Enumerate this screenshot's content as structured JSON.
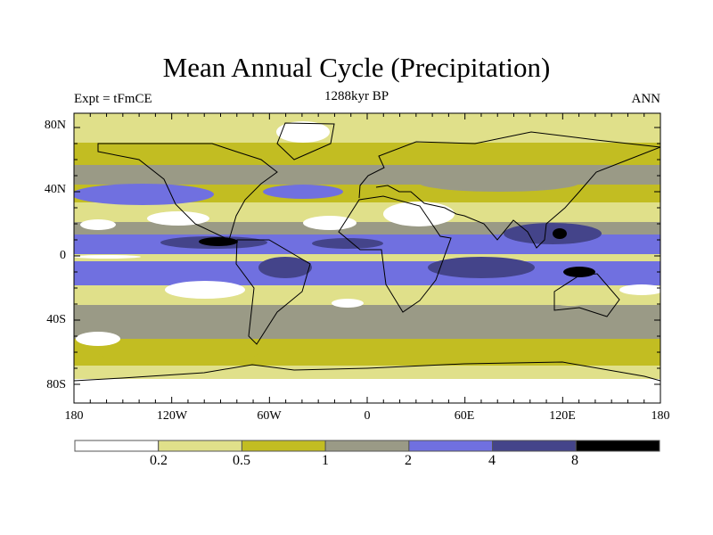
{
  "title": "Mean Annual Cycle (Precipitation)",
  "left_string": "Expt = tFmCE",
  "center_string": "1288kyr BP",
  "right_string": "ANN",
  "chart_data": {
    "type": "heatmap",
    "projection": "cylindrical-equidistant",
    "variable": "Precipitation",
    "title": "Mean Annual Cycle (Precipitation)",
    "lon_range": [
      -180,
      180
    ],
    "lat_range": [
      -90,
      90
    ],
    "y_ticks": [
      "80N",
      "40N",
      "0",
      "40S",
      "80S"
    ],
    "x_ticks": [
      "180",
      "120W",
      "60W",
      "0",
      "60E",
      "120E",
      "180"
    ],
    "colorbar": {
      "levels": [
        "0.2",
        "0.5",
        "1",
        "2",
        "4",
        "8"
      ],
      "colors": [
        "#ffffff",
        "#e0e08a",
        "#c2bd22",
        "#9a9a86",
        "#7070e0",
        "#44448a",
        "#000000"
      ],
      "placement": "bottom"
    }
  }
}
